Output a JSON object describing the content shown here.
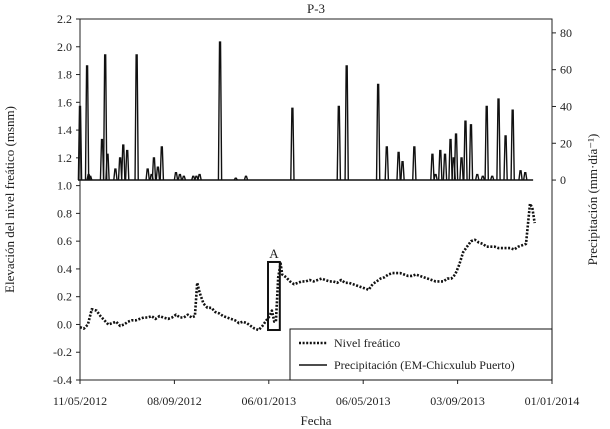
{
  "chart_data": {
    "type": "line",
    "title": "P-3",
    "xlabel": "Fecha",
    "ylabel_left": "Elevación del nivel freático (msnm)",
    "ylabel_right": "Precipitación (mm·día⁻¹)",
    "x_start": "2012-05-11",
    "x_end": "2014-01-01",
    "x_ticks": [
      "11/05/2012",
      "08/09/2012",
      "06/01/2013",
      "06/05/2013",
      "03/09/2013",
      "01/01/2014"
    ],
    "x_tick_dates": [
      "2012-05-11",
      "2012-09-08",
      "2013-01-06",
      "2013-05-06",
      "2013-09-03",
      "2014-01-01"
    ],
    "ylim_left": [
      -0.4,
      2.2
    ],
    "yticks_left": [
      "-0.4",
      "-0.2",
      "0.0",
      "0.2",
      "0.4",
      "0.6",
      "0.8",
      "1.0",
      "1.2",
      "1.4",
      "1.6",
      "1.8",
      "2.0",
      "2.2"
    ],
    "ylim_right": [
      0,
      80
    ],
    "yticks_right": [
      "0",
      "20",
      "40",
      "60",
      "80"
    ],
    "legend_position": "bottom-right",
    "annotation": {
      "label": "A",
      "x_range": [
        "2013-01-05",
        "2013-01-20"
      ],
      "y_range": [
        -0.04,
        0.45
      ]
    },
    "series": [
      {
        "name": "Nivel freático",
        "style": "dotted",
        "axis": "left",
        "x": [
          "2012-05-11",
          "2012-05-16",
          "2012-05-21",
          "2012-05-26",
          "2012-06-01",
          "2012-06-06",
          "2012-06-11",
          "2012-06-16",
          "2012-06-21",
          "2012-06-26",
          "2012-07-01",
          "2012-07-06",
          "2012-07-11",
          "2012-07-16",
          "2012-07-21",
          "2012-07-26",
          "2012-07-31",
          "2012-08-05",
          "2012-08-10",
          "2012-08-15",
          "2012-08-20",
          "2012-08-25",
          "2012-08-31",
          "2012-09-05",
          "2012-09-10",
          "2012-09-15",
          "2012-09-20",
          "2012-09-25",
          "2012-09-30",
          "2012-10-04",
          "2012-10-07",
          "2012-10-10",
          "2012-10-15",
          "2012-10-20",
          "2012-10-25",
          "2012-10-30",
          "2012-11-04",
          "2012-11-09",
          "2012-11-14",
          "2012-11-19",
          "2012-11-24",
          "2012-11-29",
          "2012-12-04",
          "2012-12-09",
          "2012-12-14",
          "2012-12-19",
          "2012-12-24",
          "2012-12-29",
          "2013-01-03",
          "2013-01-07",
          "2013-01-10",
          "2013-01-13",
          "2013-01-15",
          "2013-01-18",
          "2013-01-21",
          "2013-01-23",
          "2013-01-28",
          "2013-02-02",
          "2013-02-07",
          "2013-02-12",
          "2013-02-17",
          "2013-02-22",
          "2013-02-27",
          "2013-03-04",
          "2013-03-09",
          "2013-03-14",
          "2013-03-19",
          "2013-03-24",
          "2013-03-29",
          "2013-04-03",
          "2013-04-08",
          "2013-04-13",
          "2013-04-18",
          "2013-04-23",
          "2013-04-28",
          "2013-05-03",
          "2013-05-08",
          "2013-05-13",
          "2013-05-18",
          "2013-05-23",
          "2013-05-28",
          "2013-06-02",
          "2013-06-07",
          "2013-06-12",
          "2013-06-17",
          "2013-06-22",
          "2013-06-27",
          "2013-07-02",
          "2013-07-07",
          "2013-07-12",
          "2013-07-17",
          "2013-07-22",
          "2013-07-27",
          "2013-08-01",
          "2013-08-06",
          "2013-08-11",
          "2013-08-16",
          "2013-08-21",
          "2013-08-26",
          "2013-08-31",
          "2013-09-05",
          "2013-09-10",
          "2013-09-15",
          "2013-09-20",
          "2013-09-25",
          "2013-09-30",
          "2013-10-05",
          "2013-10-10",
          "2013-10-15",
          "2013-10-20",
          "2013-10-25",
          "2013-10-30",
          "2013-11-04",
          "2013-11-09",
          "2013-11-14",
          "2013-11-19",
          "2013-11-24",
          "2013-11-29",
          "2013-12-04",
          "2013-12-07",
          "2013-12-10"
        ],
        "values": [
          -0.02,
          -0.03,
          0.0,
          0.11,
          0.1,
          0.06,
          0.03,
          0.0,
          0.01,
          0.02,
          -0.01,
          0.0,
          0.02,
          0.03,
          0.03,
          0.04,
          0.05,
          0.05,
          0.06,
          0.04,
          0.06,
          0.05,
          0.04,
          0.05,
          0.07,
          0.05,
          0.05,
          0.07,
          0.05,
          0.06,
          0.3,
          0.23,
          0.15,
          0.12,
          0.12,
          0.09,
          0.08,
          0.06,
          0.05,
          0.04,
          0.03,
          0.01,
          0.02,
          0.01,
          -0.01,
          -0.03,
          -0.04,
          -0.01,
          0.03,
          0.06,
          0.1,
          0.02,
          0.02,
          0.34,
          0.44,
          0.36,
          0.34,
          0.31,
          0.29,
          0.3,
          0.31,
          0.31,
          0.32,
          0.31,
          0.32,
          0.33,
          0.32,
          0.31,
          0.31,
          0.3,
          0.32,
          0.3,
          0.3,
          0.29,
          0.28,
          0.27,
          0.26,
          0.25,
          0.29,
          0.31,
          0.33,
          0.34,
          0.36,
          0.37,
          0.37,
          0.37,
          0.36,
          0.35,
          0.35,
          0.36,
          0.35,
          0.34,
          0.33,
          0.32,
          0.31,
          0.31,
          0.31,
          0.33,
          0.33,
          0.36,
          0.43,
          0.52,
          0.56,
          0.6,
          0.61,
          0.59,
          0.58,
          0.56,
          0.56,
          0.56,
          0.55,
          0.55,
          0.55,
          0.55,
          0.54,
          0.56,
          0.57,
          0.58,
          0.87,
          0.84,
          0.73
        ]
      },
      {
        "name": "Precipitación (EM-Chicxulub Puerto)",
        "style": "solid",
        "axis": "right",
        "x": [
          "2012-05-11",
          "2012-05-20",
          "2012-05-22",
          "2012-05-24",
          "2012-06-08",
          "2012-06-12",
          "2012-06-15",
          "2012-06-25",
          "2012-07-01",
          "2012-07-05",
          "2012-07-10",
          "2012-07-22",
          "2012-08-05",
          "2012-08-10",
          "2012-08-13",
          "2012-08-18",
          "2012-08-23",
          "2012-09-10",
          "2012-09-15",
          "2012-09-20",
          "2012-10-02",
          "2012-10-06",
          "2012-10-10",
          "2012-11-05",
          "2012-11-25",
          "2012-12-08",
          "2013-02-05",
          "2013-04-05",
          "2013-04-15",
          "2013-05-25",
          "2013-06-05",
          "2013-06-20",
          "2013-06-25",
          "2013-07-10",
          "2013-08-02",
          "2013-08-06",
          "2013-08-12",
          "2013-08-18",
          "2013-08-25",
          "2013-08-29",
          "2013-09-01",
          "2013-09-08",
          "2013-09-13",
          "2013-09-20",
          "2013-09-28",
          "2013-10-05",
          "2013-10-10",
          "2013-10-17",
          "2013-10-25",
          "2013-11-03",
          "2013-11-12",
          "2013-11-22",
          "2013-11-28"
        ],
        "values": [
          40,
          62,
          3,
          2,
          22,
          68,
          14,
          6,
          12,
          19,
          16,
          68,
          6,
          3,
          12,
          7,
          18,
          4,
          3,
          2,
          2,
          2,
          3,
          75,
          1,
          2,
          39,
          40,
          62,
          52,
          18,
          15,
          10,
          18,
          14,
          3,
          16,
          14,
          22,
          12,
          25,
          12,
          32,
          30,
          3,
          2,
          40,
          2,
          44,
          24,
          38,
          5,
          4
        ]
      }
    ]
  }
}
